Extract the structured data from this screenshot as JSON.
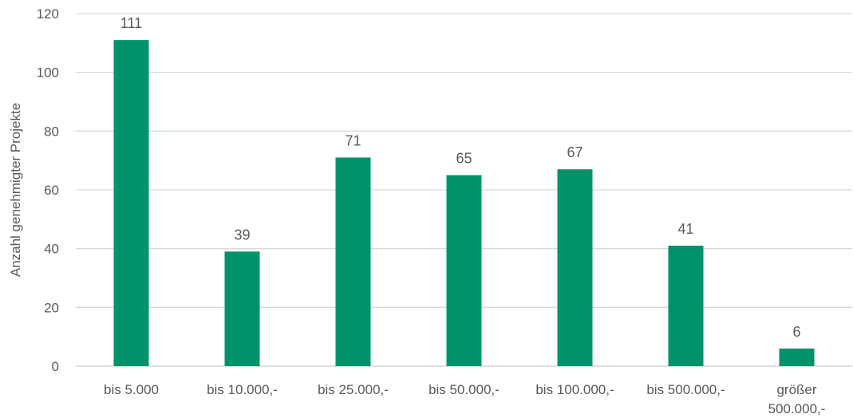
{
  "chart_data": {
    "type": "bar",
    "title": "",
    "xlabel": "",
    "ylabel": "Anzahl genehmigter Projekte",
    "ylim": [
      0,
      120
    ],
    "yticks": [
      0,
      20,
      40,
      60,
      80,
      100,
      120
    ],
    "grid": true,
    "legend": "none",
    "bar_color": "#00936B",
    "categories": [
      [
        "bis 5.000"
      ],
      [
        "bis 10.000,-"
      ],
      [
        "bis 25.000,-"
      ],
      [
        "bis 50.000,-"
      ],
      [
        "bis 100.000,-"
      ],
      [
        "bis 500.000,-"
      ],
      [
        "größer",
        "500.000,-"
      ]
    ],
    "values": [
      111,
      39,
      71,
      65,
      67,
      41,
      6
    ]
  }
}
